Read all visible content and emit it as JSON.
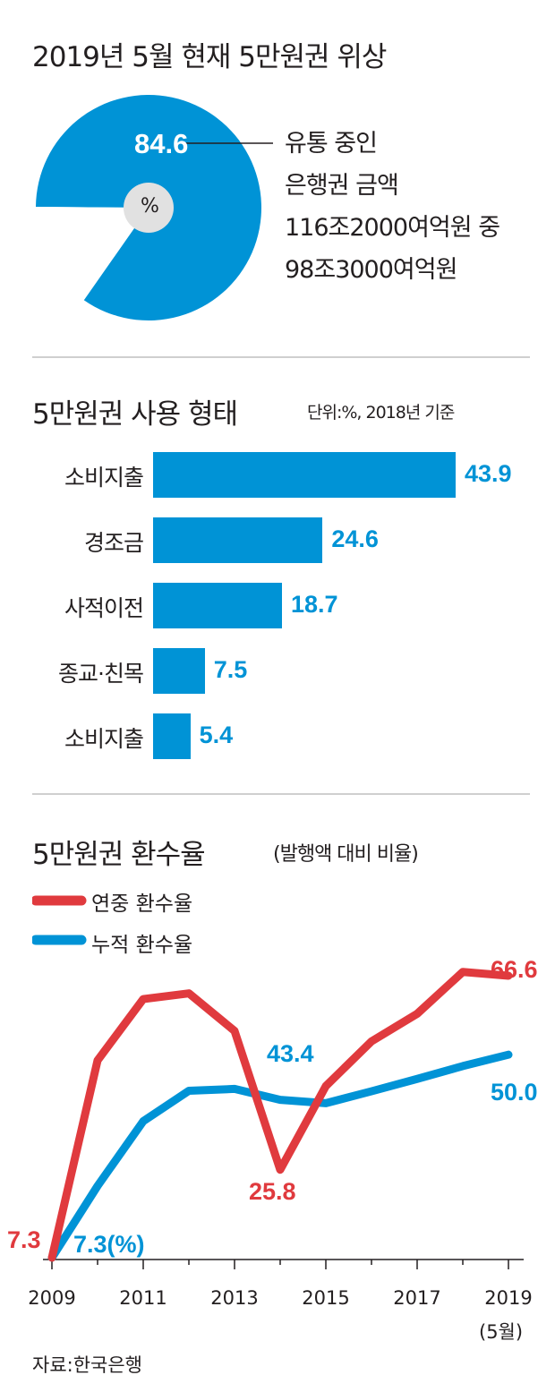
{
  "pie": {
    "title": "2019년 5월 현재 5만원권 위상",
    "value_label": "84.6",
    "center_label": "%",
    "value": 84.6,
    "desc_lines": [
      "유통 중인",
      "은행권 금액",
      "116조2000여억원 중",
      "98조3000여억원"
    ],
    "colors": {
      "main": "#0093d6",
      "rest": "#ffffff"
    }
  },
  "bars": {
    "title": "5만원권 사용 형태",
    "unit": "단위:%, 2018년 기준",
    "color": "#0093d6"
  },
  "line": {
    "title": "5만원권 환수율",
    "subtitle": "(발행액 대비 비율)",
    "legend": [
      {
        "label": "연중 환수율",
        "color": "#e03a3e"
      },
      {
        "label": "누적 환수율",
        "color": "#0093d6"
      }
    ],
    "labels": {
      "annual_start": "7.3",
      "cum_start": "7.3(%)",
      "annual_end": "66.6",
      "cum_end": "50.0",
      "annual_min": "25.8",
      "cum_mid": "43.4"
    },
    "xticks": [
      "2009",
      "2011",
      "2013",
      "2015",
      "2017",
      "2019"
    ],
    "xtick_note": "(5월)"
  },
  "source": "자료:한국은행",
  "chart_data": [
    {
      "type": "pie",
      "title": "2019년 5월 현재 5만원권 위상",
      "values": [
        84.6,
        15.4
      ]
    },
    {
      "type": "bar",
      "title": "5만원권 사용 형태",
      "categories": [
        "소비지출",
        "경조금",
        "사적이전",
        "종교·친목",
        "소비지출"
      ],
      "values": [
        43.9,
        24.6,
        18.7,
        7.5,
        5.4
      ],
      "value_labels": [
        "43.9",
        "24.6",
        "18.7",
        "7.5",
        "5.4"
      ],
      "ylabel": "단위:%, 2018년 기준"
    },
    {
      "type": "line",
      "title": "5만원권 환수율",
      "x": [
        2009,
        2010,
        2011,
        2012,
        2013,
        2014,
        2015,
        2016,
        2017,
        2018,
        2019
      ],
      "series": [
        {
          "name": "연중 환수율",
          "values": [
            7.3,
            48.8,
            61.7,
            62.9,
            55.0,
            25.8,
            43.4,
            52.8,
            58.6,
            67.4,
            66.6
          ]
        },
        {
          "name": "누적 환수율",
          "values": [
            7.3,
            22.4,
            36.0,
            42.4,
            42.8,
            40.5,
            39.8,
            42.3,
            44.9,
            47.6,
            50.0
          ]
        }
      ],
      "xlim": [
        2009,
        2019
      ],
      "ylim": [
        5,
        70
      ]
    }
  ]
}
